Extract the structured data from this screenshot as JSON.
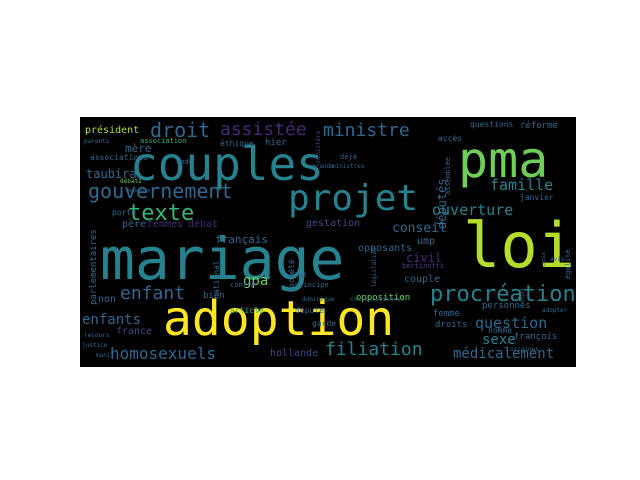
{
  "cloud": {
    "background": "#000000",
    "palette": {
      "yellow": "#fde725",
      "lime": "#b5de2b",
      "green": "#6ece58",
      "teal": "#35b779",
      "cyan": "#1f9e89",
      "blue": "#26828e",
      "slate": "#31688e",
      "indigo": "#3e4989",
      "purple": "#482878",
      "dark": "#440154"
    },
    "words": [
      {
        "text": "mariage",
        "size": 58,
        "color": "#26828e"
      },
      {
        "text": "couples",
        "size": 46,
        "color": "#26828e"
      },
      {
        "text": "pma",
        "size": 50,
        "color": "#6ece58"
      },
      {
        "text": "loi",
        "size": 62,
        "color": "#b5de2b"
      },
      {
        "text": "adoption",
        "size": 48,
        "color": "#fde725"
      },
      {
        "text": "projet",
        "size": 36,
        "color": "#26828e"
      },
      {
        "text": "procréation",
        "size": 22,
        "color": "#26828e"
      },
      {
        "text": "gouvernement",
        "size": 20,
        "color": "#31688e"
      },
      {
        "text": "texte",
        "size": 22,
        "color": "#35b779"
      },
      {
        "text": "droit",
        "size": 20,
        "color": "#31688e"
      },
      {
        "text": "assistée",
        "size": 18,
        "color": "#482878"
      },
      {
        "text": "ministre",
        "size": 18,
        "color": "#31688e"
      },
      {
        "text": "filiation",
        "size": 18,
        "color": "#26828e"
      },
      {
        "text": "homosexuels",
        "size": 16,
        "color": "#31688e"
      },
      {
        "text": "enfant",
        "size": 18,
        "color": "#31688e"
      },
      {
        "text": "ouverture",
        "size": 15,
        "color": "#26828e"
      },
      {
        "text": "famille",
        "size": 15,
        "color": "#26828e"
      },
      {
        "text": "question",
        "size": 15,
        "color": "#31688e"
      },
      {
        "text": "médicalement",
        "size": 14,
        "color": "#31688e"
      },
      {
        "text": "sexe",
        "size": 14,
        "color": "#26828e"
      },
      {
        "text": "enfants",
        "size": 14,
        "color": "#31688e"
      },
      {
        "text": "gpa",
        "size": 14,
        "color": "#6ece58"
      },
      {
        "text": "conseil",
        "size": 13,
        "color": "#31688e"
      },
      {
        "text": "civil",
        "size": 12,
        "color": "#482878"
      },
      {
        "text": "députés",
        "size": 12,
        "color": "#31688e"
      },
      {
        "text": "taubira",
        "size": 12,
        "color": "#31688e"
      },
      {
        "text": "français",
        "size": 11,
        "color": "#31688e"
      },
      {
        "text": "femmes",
        "size": 10,
        "color": "#482878"
      },
      {
        "text": "mère",
        "size": 11,
        "color": "#31688e"
      },
      {
        "text": "débat",
        "size": 10,
        "color": "#482878"
      },
      {
        "text": "père",
        "size": 10,
        "color": "#31688e"
      },
      {
        "text": "président",
        "size": 10,
        "color": "#b5de2b"
      },
      {
        "text": "gestation",
        "size": 10,
        "color": "#3e4989"
      },
      {
        "text": "opposants",
        "size": 10,
        "color": "#31688e"
      },
      {
        "text": "ump",
        "size": 10,
        "color": "#31688e"
      },
      {
        "text": "couple",
        "size": 10,
        "color": "#31688e"
      },
      {
        "text": "france",
        "size": 10,
        "color": "#3e4989"
      },
      {
        "text": "non",
        "size": 10,
        "color": "#31688e"
      },
      {
        "text": "hollande",
        "size": 10,
        "color": "#3e4989"
      },
      {
        "text": "opposition",
        "size": 9,
        "color": "#6ece58"
      },
      {
        "text": "droits",
        "size": 9,
        "color": "#31688e"
      },
      {
        "text": "femme",
        "size": 9,
        "color": "#31688e"
      },
      {
        "text": "personnes",
        "size": 9,
        "color": "#31688e"
      },
      {
        "text": "françois",
        "size": 9,
        "color": "#31688e"
      },
      {
        "text": "article",
        "size": 8,
        "color": "#35b779"
      },
      {
        "text": "député",
        "size": 8,
        "color": "#31688e"
      },
      {
        "text": "bien",
        "size": 9,
        "color": "#31688e"
      },
      {
        "text": "garde",
        "size": 8,
        "color": "#31688e"
      },
      {
        "text": "homme",
        "size": 8,
        "color": "#31688e"
      },
      {
        "text": "réforme",
        "size": 9,
        "color": "#31688e"
      },
      {
        "text": "questions",
        "size": 8,
        "color": "#31688e"
      },
      {
        "text": "accès",
        "size": 8,
        "color": "#31688e"
      },
      {
        "text": "janvier",
        "size": 8,
        "color": "#31688e"
      },
      {
        "text": "éthique",
        "size": 8,
        "color": "#31688e"
      },
      {
        "text": "hier",
        "size": 9,
        "color": "#31688e"
      },
      {
        "text": "associations",
        "size": 8,
        "color": "#31688e"
      },
      {
        "text": "association",
        "size": 7,
        "color": "#35b779"
      },
      {
        "text": "code",
        "size": 7,
        "color": "#31688e"
      },
      {
        "text": "porte",
        "size": 8,
        "color": "#31688e"
      },
      {
        "text": "contre",
        "size": 7,
        "color": "#31688e"
      },
      {
        "text": "état",
        "size": 7,
        "color": "#31688e"
      },
      {
        "text": "principe",
        "size": 7,
        "color": "#31688e"
      },
      {
        "text": "déjà",
        "size": 7,
        "color": "#31688e"
      },
      {
        "text": "ministres",
        "size": 6,
        "color": "#31688e"
      },
      {
        "text": "grande",
        "size": 6,
        "color": "#31688e"
      },
      {
        "text": "constitutionnel",
        "size": 6,
        "color": "#31688e"
      },
      {
        "text": "adopter",
        "size": 6,
        "color": "#31688e"
      },
      {
        "text": "origines",
        "size": 6,
        "color": "#31688e"
      },
      {
        "text": "dominique",
        "size": 6,
        "color": "#31688e"
      },
      {
        "text": "parents",
        "size": 6,
        "color": "#31688e"
      },
      {
        "text": "débats",
        "size": 6,
        "color": "#6ece58"
      },
      {
        "text": "justice",
        "size": 6,
        "color": "#31688e"
      },
      {
        "text": "recours",
        "size": 6,
        "color": "#31688e"
      },
      {
        "text": "manif",
        "size": 6,
        "color": "#31688e"
      },
      {
        "text": "décembre",
        "size": 5,
        "color": "#31688e"
      },
      {
        "text": "avis",
        "size": 6,
        "color": "#31688e"
      },
      {
        "text": "bertinotti",
        "size": 7,
        "color": "#3e4989"
      },
      {
        "text": "parlementaires",
        "size": 9,
        "color": "#31688e"
      },
      {
        "text": "national",
        "size": 8,
        "color": "#31688e"
      },
      {
        "text": "société",
        "size": 8,
        "color": "#31688e"
      },
      {
        "text": "égalité",
        "size": 7,
        "color": "#31688e"
      },
      {
        "text": "assemblée",
        "size": 7,
        "color": "#31688e"
      },
      {
        "text": "législation",
        "size": 6,
        "color": "#31688e"
      },
      {
        "text": "ministère",
        "size": 6,
        "color": "#3e4989"
      },
      {
        "text": "sujet",
        "size": 5,
        "color": "#31688e"
      },
      {
        "text": "choix",
        "size": 5,
        "color": "#31688e"
      }
    ]
  }
}
